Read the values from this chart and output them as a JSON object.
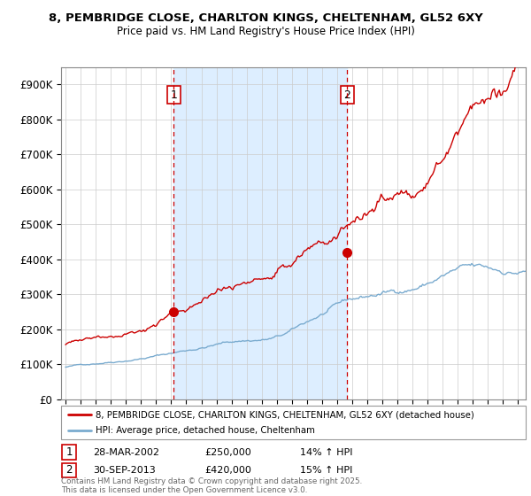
{
  "title1": "8, PEMBRIDGE CLOSE, CHARLTON KINGS, CHELTENHAM, GL52 6XY",
  "title2": "Price paid vs. HM Land Registry's House Price Index (HPI)",
  "property_label": "8, PEMBRIDGE CLOSE, CHARLTON KINGS, CHELTENHAM, GL52 6XY (detached house)",
  "hpi_label": "HPI: Average price, detached house, Cheltenham",
  "footer": "Contains HM Land Registry data © Crown copyright and database right 2025.\nThis data is licensed under the Open Government Licence v3.0.",
  "sale1_date": "28-MAR-2002",
  "sale1_price": 250000,
  "sale1_hpi": "14% ↑ HPI",
  "sale2_date": "30-SEP-2013",
  "sale2_price": 420000,
  "sale2_hpi": "15% ↑ HPI",
  "property_color": "#cc0000",
  "hpi_color": "#7aabcf",
  "vline_color": "#cc0000",
  "shade_color": "#ddeeff",
  "background_color": "#ffffff",
  "ylim": [
    0,
    950000
  ],
  "yticks": [
    0,
    100000,
    200000,
    300000,
    400000,
    500000,
    600000,
    700000,
    800000,
    900000
  ],
  "xstart": 1995,
  "xend": 2025
}
